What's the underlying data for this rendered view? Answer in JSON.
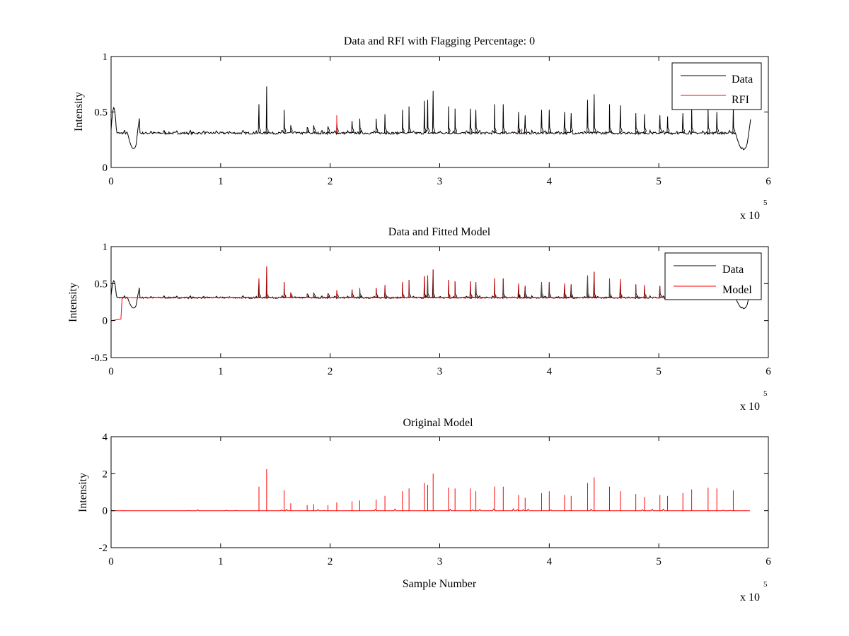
{
  "chart_data": [
    {
      "type": "line",
      "title": "Data and RFI with Flagging Percentage: 0",
      "xlabel": "",
      "ylabel": "Intensity",
      "xlim": [
        0,
        600000
      ],
      "ylim": [
        0,
        1
      ],
      "xticks": [
        0,
        1,
        2,
        3,
        4,
        5,
        6
      ],
      "xtick_labels": [
        "0",
        "1",
        "2",
        "3",
        "4",
        "5",
        "6"
      ],
      "yticks": [
        0,
        0.5,
        1
      ],
      "ytick_labels": [
        "0",
        "0.5",
        "1"
      ],
      "x_multiplier": "x 10",
      "x_multiplier_exp": "5",
      "legend_position": "top-right",
      "series": [
        {
          "name": "Data",
          "color": "#000000",
          "baseline": 0.31
        },
        {
          "name": "RFI",
          "color": "#ff0000",
          "baseline": 0.31
        }
      ],
      "spikes_x": [
        135000,
        142000,
        158000,
        164000,
        179000,
        185000,
        198000,
        206000,
        220000,
        227000,
        242000,
        250000,
        266000,
        272000,
        286000,
        289000,
        294000,
        308000,
        314000,
        328000,
        333000,
        350000,
        358000,
        372000,
        378000,
        393000,
        400000,
        414000,
        420000,
        435000,
        441000,
        455000,
        465000,
        479000,
        487000,
        501000,
        508000,
        522000,
        530000,
        545000,
        553000,
        568000
      ],
      "spikes_y": [
        0.57,
        0.73,
        0.52,
        0.38,
        0.36,
        0.38,
        0.37,
        0.41,
        0.42,
        0.44,
        0.44,
        0.48,
        0.52,
        0.55,
        0.6,
        0.61,
        0.69,
        0.55,
        0.53,
        0.53,
        0.52,
        0.57,
        0.57,
        0.5,
        0.47,
        0.52,
        0.52,
        0.5,
        0.49,
        0.61,
        0.66,
        0.57,
        0.56,
        0.49,
        0.48,
        0.47,
        0.46,
        0.49,
        0.56,
        0.55,
        0.5,
        0.54
      ],
      "rfi_points_x": [
        206000,
        375000
      ],
      "rfi_points_y": [
        0.47,
        0.35
      ]
    },
    {
      "type": "line",
      "title": "Data and Fitted Model",
      "xlabel": "",
      "ylabel": "Intensity",
      "xlim": [
        0,
        600000
      ],
      "ylim": [
        -0.5,
        1
      ],
      "xticks": [
        0,
        1,
        2,
        3,
        4,
        5,
        6
      ],
      "xtick_labels": [
        "0",
        "1",
        "2",
        "3",
        "4",
        "5",
        "6"
      ],
      "yticks": [
        -0.5,
        0,
        0.5,
        1
      ],
      "ytick_labels": [
        "-0.5",
        "0",
        "0.5",
        "1"
      ],
      "x_multiplier": "x 10",
      "x_multiplier_exp": "5",
      "legend_position": "top-right",
      "series": [
        {
          "name": "Data",
          "color": "#000000",
          "baseline": 0.31
        },
        {
          "name": "Model",
          "color": "#ff0000",
          "baseline": 0.31
        }
      ],
      "model_startup": {
        "x": [
          0,
          9000,
          10000
        ],
        "y": [
          0.0,
          0.02,
          0.3
        ]
      }
    },
    {
      "type": "line",
      "title": "Original Model",
      "xlabel": "Sample Number",
      "ylabel": "Intensity",
      "xlim": [
        0,
        600000
      ],
      "ylim": [
        -2,
        4
      ],
      "xticks": [
        0,
        1,
        2,
        3,
        4,
        5,
        6
      ],
      "xtick_labels": [
        "0",
        "1",
        "2",
        "3",
        "4",
        "5",
        "6"
      ],
      "yticks": [
        -2,
        0,
        2,
        4
      ],
      "ytick_labels": [
        "-2",
        "0",
        "2",
        "4"
      ],
      "x_multiplier": "x 10",
      "x_multiplier_exp": "5",
      "series": [
        {
          "name": "",
          "color": "#ff0000",
          "baseline": 0.0
        }
      ],
      "spikes_x": [
        135000,
        142000,
        158000,
        164000,
        179000,
        185000,
        198000,
        206000,
        220000,
        227000,
        242000,
        250000,
        266000,
        272000,
        286000,
        289000,
        294000,
        308000,
        314000,
        328000,
        333000,
        350000,
        358000,
        372000,
        378000,
        393000,
        400000,
        414000,
        420000,
        435000,
        441000,
        455000,
        465000,
        479000,
        487000,
        501000,
        508000,
        522000,
        530000,
        545000,
        553000,
        568000
      ],
      "spikes_y": [
        1.3,
        2.25,
        1.1,
        0.4,
        0.3,
        0.35,
        0.3,
        0.45,
        0.5,
        0.55,
        0.6,
        0.8,
        1.05,
        1.2,
        1.5,
        1.4,
        2.0,
        1.25,
        1.2,
        1.2,
        1.05,
        1.3,
        1.3,
        0.85,
        0.7,
        0.95,
        1.05,
        0.85,
        0.8,
        1.5,
        1.8,
        1.3,
        1.05,
        0.9,
        0.75,
        0.85,
        0.8,
        0.95,
        1.15,
        1.25,
        1.2,
        1.1
      ]
    }
  ]
}
